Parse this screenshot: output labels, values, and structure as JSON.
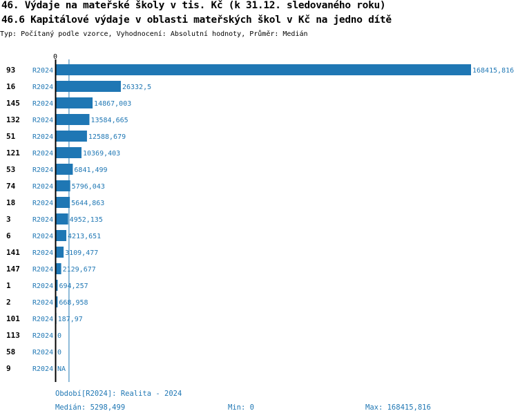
{
  "header": {
    "title": "46. Výdaje na mateřské školy v tis. Kč (k 31.12. sledovaného roku)",
    "subtitle": "46.6 Kapitálové výdaje v oblasti mateřských škol v Kč na jedno dítě",
    "type_line": "Typ: Počítaný podle vzorce, Vyhodnocení: Absolutní hodnoty, Průměr: Medián"
  },
  "chart_data": {
    "type": "bar",
    "orientation": "horizontal",
    "axis_zero_label": "0",
    "bar_color": "#1f77b4",
    "median": 5298.499,
    "rows": [
      {
        "id": "93",
        "period": "R2024",
        "value": 168415.816,
        "label": "168415,816"
      },
      {
        "id": "16",
        "period": "R2024",
        "value": 26332.5,
        "label": "26332,5"
      },
      {
        "id": "145",
        "period": "R2024",
        "value": 14867.003,
        "label": "14867,003"
      },
      {
        "id": "132",
        "period": "R2024",
        "value": 13584.665,
        "label": "13584,665"
      },
      {
        "id": "51",
        "period": "R2024",
        "value": 12588.679,
        "label": "12588,679"
      },
      {
        "id": "121",
        "period": "R2024",
        "value": 10369.403,
        "label": "10369,403"
      },
      {
        "id": "53",
        "period": "R2024",
        "value": 6841.499,
        "label": "6841,499"
      },
      {
        "id": "74",
        "period": "R2024",
        "value": 5796.043,
        "label": "5796,043"
      },
      {
        "id": "18",
        "period": "R2024",
        "value": 5644.863,
        "label": "5644,863"
      },
      {
        "id": "3",
        "period": "R2024",
        "value": 4952.135,
        "label": "4952,135"
      },
      {
        "id": "6",
        "period": "R2024",
        "value": 4213.651,
        "label": "4213,651"
      },
      {
        "id": "141",
        "period": "R2024",
        "value": 3109.477,
        "label": "3109,477"
      },
      {
        "id": "147",
        "period": "R2024",
        "value": 2129.677,
        "label": "2129,677"
      },
      {
        "id": "1",
        "period": "R2024",
        "value": 694.257,
        "label": "694,257"
      },
      {
        "id": "2",
        "period": "R2024",
        "value": 668.958,
        "label": "668,958"
      },
      {
        "id": "101",
        "period": "R2024",
        "value": 187.97,
        "label": "187,97"
      },
      {
        "id": "113",
        "period": "R2024",
        "value": 0,
        "label": "0"
      },
      {
        "id": "58",
        "period": "R2024",
        "value": 0,
        "label": "0"
      },
      {
        "id": "9",
        "period": "R2024",
        "value": null,
        "label": "NA"
      }
    ]
  },
  "footer": {
    "period": "Období[R2024]: Realita - 2024",
    "median": "Medián: 5298,499",
    "min": "Min: 0",
    "max": "Max: 168415,816"
  }
}
